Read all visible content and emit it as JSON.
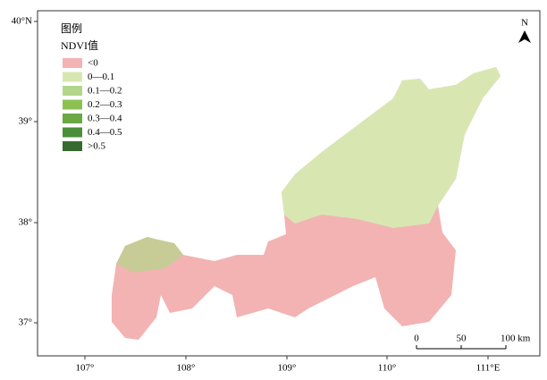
{
  "map": {
    "lat_labels": [
      "40°N",
      "39°",
      "38°",
      "37°"
    ],
    "lon_labels": [
      "107°",
      "108°",
      "109°",
      "110°",
      "111°E"
    ],
    "north": "N",
    "legend": {
      "title": "图例",
      "subtitle": "NDVI值",
      "items": [
        {
          "label": "<0",
          "color": "#f3b3b3"
        },
        {
          "label": "0—0.1",
          "color": "#d8e7b2"
        },
        {
          "label": "0.1—0.2",
          "color": "#b3d68a"
        },
        {
          "label": "0.2—0.3",
          "color": "#8cc152"
        },
        {
          "label": "0.3—0.4",
          "color": "#69a843"
        },
        {
          "label": "0.4—0.5",
          "color": "#4b8f3a"
        },
        {
          "label": ">0.5",
          "color": "#36692d"
        }
      ]
    },
    "scale_bar": {
      "labels": [
        "0",
        "50",
        "100 km"
      ]
    }
  }
}
